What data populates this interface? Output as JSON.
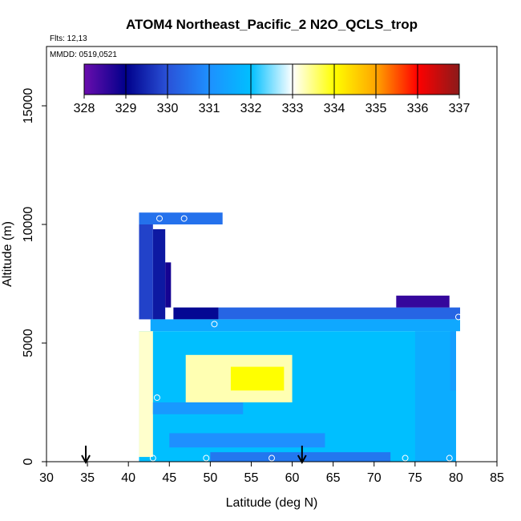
{
  "chart_data": {
    "type": "heatmap",
    "title": "ATOM4 Northeast_Pacific_2 N2O_QCLS_trop",
    "notes": {
      "flights": "Flts: 12,13",
      "dates": "MMDD: 0519,0521"
    },
    "xlabel": "Latitude (deg N)",
    "ylabel": "Altitude (m)",
    "xlim": [
      30,
      85
    ],
    "ylim": [
      0,
      17500
    ],
    "xticks": [
      "30",
      "35",
      "40",
      "45",
      "50",
      "55",
      "60",
      "65",
      "70",
      "75",
      "80",
      "85"
    ],
    "yticks": [
      "0",
      "5000",
      "10000",
      "15000"
    ],
    "colorbar": {
      "labels": [
        "328",
        "329",
        "330",
        "331",
        "332",
        "333",
        "334",
        "335",
        "336",
        "337"
      ],
      "range": [
        328,
        337
      ],
      "colors": [
        "#6a0dad",
        "#00008b",
        "#2a52d8",
        "#1e90ff",
        "#00bfff",
        "#ffffff",
        "#ffff00",
        "#ffa500",
        "#ff0000",
        "#8b1a1a"
      ]
    },
    "arrows_at_latitude": [
      34.8,
      61.2
    ],
    "regions": [
      {
        "lat": [
          41.3,
          51.5
        ],
        "alt": [
          10000,
          10500
        ],
        "value": 330.5
      },
      {
        "lat": [
          41.3,
          43.0
        ],
        "alt": [
          6000,
          10000
        ],
        "value": 329.8
      },
      {
        "lat": [
          43.0,
          44.5
        ],
        "alt": [
          6000,
          9800
        ],
        "value": 329.3
      },
      {
        "lat": [
          44.5,
          45.2
        ],
        "alt": [
          6500,
          8400
        ],
        "value": 328.8
      },
      {
        "lat": [
          45.5,
          51.0
        ],
        "alt": [
          6000,
          6500
        ],
        "value": 329.1
      },
      {
        "lat": [
          51.0,
          80.5
        ],
        "alt": [
          6000,
          6500
        ],
        "value": 330.3
      },
      {
        "lat": [
          72.7,
          79.2
        ],
        "alt": [
          6500,
          7000
        ],
        "value": 328.5
      },
      {
        "lat": [
          42.7,
          80.5
        ],
        "alt": [
          5500,
          6000
        ],
        "value": 331.5
      },
      {
        "lat": [
          41.3,
          80.0
        ],
        "alt": [
          0,
          5500
        ],
        "value": 332.0
      },
      {
        "lat": [
          47.0,
          60.0
        ],
        "alt": [
          2500,
          4500
        ],
        "value": 333.3
      },
      {
        "lat": [
          52.5,
          59.0
        ],
        "alt": [
          3000,
          4000
        ],
        "value": 334.0
      },
      {
        "lat": [
          41.3,
          43.0
        ],
        "alt": [
          200,
          5500
        ],
        "value": 333.2
      },
      {
        "lat": [
          43.0,
          54.0
        ],
        "alt": [
          2000,
          2500
        ],
        "value": 331.2
      },
      {
        "lat": [
          45.0,
          64.0
        ],
        "alt": [
          600,
          1200
        ],
        "value": 331.0
      },
      {
        "lat": [
          50.0,
          72.0
        ],
        "alt": [
          0,
          400
        ],
        "value": 330.6
      },
      {
        "lat": [
          75.0,
          80.0
        ],
        "alt": [
          0,
          5500
        ],
        "value": 331.6
      },
      {
        "lat": [
          79.3,
          80.0
        ],
        "alt": [
          3000,
          5500
        ],
        "value": 331.3
      }
    ],
    "markers": [
      {
        "lat": 43.8,
        "alt": 10250
      },
      {
        "lat": 46.8,
        "alt": 10250
      },
      {
        "lat": 50.5,
        "alt": 5800
      },
      {
        "lat": 80.3,
        "alt": 6100
      },
      {
        "lat": 43.5,
        "alt": 2700
      },
      {
        "lat": 43.0,
        "alt": 150
      },
      {
        "lat": 49.5,
        "alt": 150
      },
      {
        "lat": 57.5,
        "alt": 150
      },
      {
        "lat": 73.8,
        "alt": 150
      },
      {
        "lat": 79.2,
        "alt": 150
      }
    ]
  }
}
